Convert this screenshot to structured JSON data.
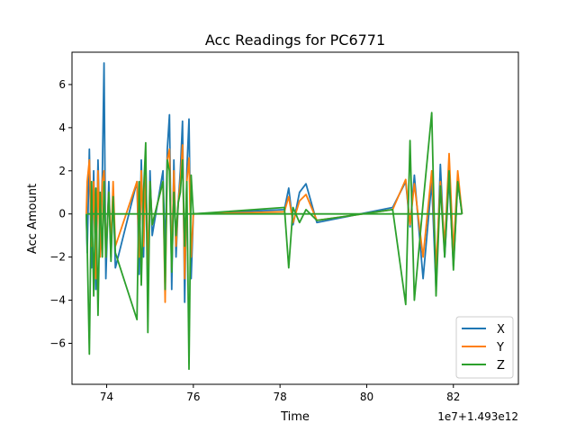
{
  "chart_data": {
    "type": "line",
    "title": "Acc Readings for PC6771",
    "xlabel": "Time",
    "ylabel": "Acc Amount",
    "x_offset_label": "1e7+1.493e12",
    "xlim": [
      73.2,
      83.5
    ],
    "ylim": [
      -7.9,
      7.5
    ],
    "x_ticks": [
      74,
      76,
      78,
      80,
      82
    ],
    "y_ticks": [
      -6,
      -4,
      -2,
      0,
      2,
      4,
      6
    ],
    "grid": false,
    "legend_position": "bottom-right",
    "series": [
      {
        "name": "X",
        "color": "#1f77b4",
        "x": [
          73.55,
          73.6,
          73.65,
          73.7,
          73.75,
          73.8,
          73.85,
          73.9,
          73.94,
          73.98,
          74.05,
          74.1,
          74.15,
          74.2,
          74.7,
          74.75,
          74.8,
          74.85,
          74.9,
          74.95,
          75.0,
          75.05,
          75.3,
          75.35,
          75.4,
          75.45,
          75.5,
          75.55,
          75.6,
          75.65,
          75.7,
          75.75,
          75.8,
          75.85,
          75.9,
          75.95,
          76.0,
          78.1,
          78.2,
          78.3,
          78.45,
          78.6,
          78.85,
          80.6,
          80.9,
          81.0,
          81.1,
          81.3,
          81.5,
          81.6,
          81.7,
          81.8,
          81.9,
          82.0,
          82.1,
          82.2
        ],
        "y": [
          -1.8,
          3.0,
          -2.5,
          2.0,
          -3.5,
          2.5,
          -1.5,
          1.8,
          7.0,
          -3.0,
          1.5,
          -2.0,
          1.0,
          -2.5,
          1.5,
          -2.8,
          2.5,
          -2.0,
          2.5,
          -3.0,
          2.0,
          -1.0,
          2.0,
          -2.0,
          3.0,
          4.6,
          -3.5,
          2.5,
          -2.0,
          0.5,
          2.0,
          4.3,
          -4.1,
          2.0,
          4.4,
          -3.0,
          0.0,
          0.2,
          1.2,
          -0.5,
          1.0,
          1.4,
          -0.4,
          0.3,
          1.5,
          -0.6,
          1.8,
          -3.0,
          1.5,
          -3.5,
          2.3,
          -2.0,
          1.7,
          -2.4,
          1.5,
          0.0
        ]
      },
      {
        "name": "Y",
        "color": "#ff7f0e",
        "x": [
          73.55,
          73.6,
          73.65,
          73.7,
          73.75,
          73.8,
          73.85,
          73.9,
          73.94,
          73.98,
          74.05,
          74.1,
          74.15,
          74.2,
          74.7,
          74.75,
          74.8,
          74.85,
          74.9,
          74.95,
          75.0,
          75.05,
          75.3,
          75.35,
          75.4,
          75.45,
          75.5,
          75.55,
          75.6,
          75.65,
          75.7,
          75.75,
          75.8,
          75.85,
          75.9,
          75.95,
          76.0,
          78.1,
          78.2,
          78.3,
          78.45,
          78.6,
          78.85,
          80.6,
          80.9,
          81.0,
          81.1,
          81.3,
          81.5,
          81.6,
          81.7,
          81.8,
          81.9,
          82.0,
          82.1,
          82.2
        ],
        "y": [
          1.5,
          2.5,
          -1.5,
          1.5,
          -3.0,
          2.0,
          -2.0,
          1.5,
          2.0,
          -2.0,
          1.0,
          -1.5,
          1.5,
          -1.5,
          1.5,
          -2.0,
          2.0,
          -1.5,
          1.8,
          -2.5,
          1.5,
          -0.5,
          1.5,
          -4.1,
          2.5,
          3.0,
          -2.5,
          2.0,
          -1.5,
          0.5,
          1.5,
          3.2,
          -3.0,
          1.5,
          2.6,
          -2.0,
          0.0,
          0.1,
          0.8,
          -0.4,
          0.6,
          0.9,
          -0.3,
          0.2,
          1.6,
          -0.5,
          1.4,
          -2.0,
          2.0,
          -2.5,
          1.5,
          -1.5,
          2.8,
          -1.8,
          2.0,
          0.0
        ]
      },
      {
        "name": "Z",
        "color": "#2ca02c",
        "x": [
          73.55,
          73.6,
          73.65,
          73.7,
          73.75,
          73.8,
          73.85,
          73.9,
          73.94,
          73.98,
          74.05,
          74.1,
          74.15,
          74.2,
          74.7,
          74.75,
          74.8,
          74.85,
          74.9,
          74.95,
          75.0,
          75.05,
          75.3,
          75.35,
          75.4,
          75.45,
          75.5,
          75.55,
          75.6,
          75.65,
          75.7,
          75.75,
          75.8,
          75.85,
          75.9,
          75.95,
          76.0,
          78.1,
          78.2,
          78.3,
          78.45,
          78.6,
          78.85,
          80.6,
          80.9,
          81.0,
          81.1,
          81.3,
          81.5,
          81.6,
          81.7,
          81.8,
          81.9,
          82.0,
          82.1,
          82.2
        ],
        "y": [
          -1.5,
          -6.5,
          1.5,
          -3.8,
          1.2,
          -4.7,
          1.0,
          -2.0,
          1.5,
          -2.0,
          1.0,
          -2.2,
          0.8,
          -1.8,
          -4.9,
          1.5,
          -3.3,
          1.0,
          3.3,
          -5.5,
          1.5,
          -0.5,
          1.5,
          -3.5,
          2.5,
          2.0,
          -2.7,
          1.0,
          -1.0,
          0.5,
          1.0,
          2.5,
          -1.5,
          1.5,
          -7.2,
          1.8,
          0.0,
          0.3,
          -2.5,
          0.3,
          -0.4,
          0.2,
          -0.3,
          0.2,
          -4.2,
          3.4,
          -4.0,
          0.5,
          4.7,
          -3.8,
          1.3,
          -2.0,
          2.0,
          -2.6,
          1.5,
          0.0
        ]
      }
    ]
  }
}
